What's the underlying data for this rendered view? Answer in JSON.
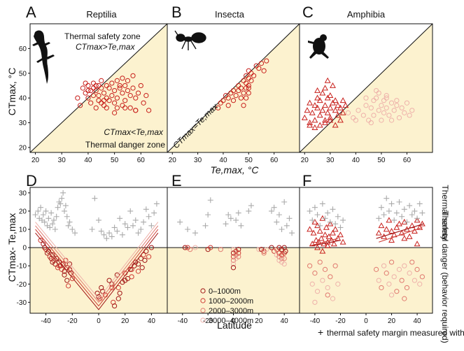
{
  "colors": {
    "danger": "#fcf2cf",
    "reptile": "#c8201c",
    "alt_colors": [
      "#a11515",
      "#cf3b33",
      "#e07a70",
      "#eeb1aa"
    ],
    "taMarker": "#aaaaaa"
  },
  "icons": [
    "lizard-icon",
    "ant-icon",
    "frog-icon"
  ],
  "chart_data": [
    {
      "panel": "A",
      "type": "scatter",
      "title": "Reptilia",
      "marker": "circle",
      "xlim": [
        18,
        70
      ],
      "ylim": [
        18,
        70
      ],
      "xticks": [
        "20",
        "30",
        "40",
        "50",
        "60"
      ],
      "yticks": [
        "20",
        "30",
        "40",
        "50",
        "60"
      ],
      "ylabel": "CTmax, °C",
      "annotations": [
        "Thermal safety zone",
        "CTmax>Te,max",
        "CTmax<Te,max",
        "Thermal danger zone"
      ],
      "series": [
        {
          "x": [
            37,
            38,
            39,
            39,
            40,
            40,
            41,
            41,
            42,
            42,
            42,
            43,
            43,
            44,
            44,
            44,
            45,
            45,
            45,
            46,
            46,
            47,
            47,
            47,
            48,
            48,
            49,
            49,
            50,
            50,
            51,
            51,
            51,
            52,
            52,
            53,
            53,
            53,
            54,
            54,
            55,
            55,
            56,
            56,
            57,
            57,
            58,
            58,
            59,
            60,
            61,
            62,
            63,
            36,
            40,
            43,
            46,
            50,
            54,
            58
          ],
          "y": [
            37,
            44,
            42,
            46,
            45,
            40,
            43,
            38,
            44,
            41,
            46,
            43,
            36,
            45,
            39,
            41,
            44,
            38,
            47,
            42,
            37,
            45,
            40,
            36,
            44,
            39,
            46,
            41,
            38,
            43,
            47,
            40,
            36,
            44,
            45,
            42,
            37,
            48,
            45,
            39,
            43,
            47,
            41,
            36,
            44,
            49,
            40,
            35,
            42,
            45,
            38,
            41,
            35,
            40,
            43,
            45,
            39,
            34,
            36,
            35
          ]
        }
      ]
    },
    {
      "panel": "B",
      "type": "scatter",
      "title": "Insecta",
      "marker": "circle",
      "xlim": [
        18,
        70
      ],
      "ylim": [
        18,
        70
      ],
      "xticks": [
        "20",
        "30",
        "40",
        "50",
        "60"
      ],
      "xlabel": "Te,max, °C",
      "annotations": [
        "CTmax=Te,max"
      ],
      "series": [
        {
          "x": [
            38,
            39,
            40,
            41,
            42,
            42,
            43,
            44,
            44,
            45,
            46,
            46,
            47,
            47,
            48,
            48,
            49,
            49,
            49,
            50,
            50,
            50,
            50,
            51,
            51,
            52,
            53,
            54,
            55,
            56,
            57,
            50,
            49,
            48
          ],
          "y": [
            36,
            38,
            39,
            41,
            37,
            40,
            42,
            39,
            43,
            41,
            43,
            45,
            40,
            44,
            42,
            47,
            44,
            46,
            49,
            42,
            45,
            48,
            51,
            47,
            50,
            49,
            53,
            52,
            54,
            51,
            55,
            44,
            40,
            37
          ]
        }
      ]
    },
    {
      "panel": "C",
      "type": "scatter",
      "title": "Amphibia",
      "xlim": [
        18,
        70
      ],
      "ylim": [
        18,
        70
      ],
      "xticks": [
        "20",
        "30",
        "40",
        "50",
        "60"
      ],
      "series": [
        {
          "marker": "triangle",
          "x": [
            20,
            21,
            22,
            22,
            23,
            24,
            24,
            25,
            25,
            26,
            26,
            27,
            27,
            28,
            28,
            28,
            29,
            29,
            30,
            30,
            30,
            31,
            31,
            32,
            32,
            33,
            33,
            34,
            35,
            35,
            36,
            22,
            24,
            26,
            28,
            30,
            32,
            34,
            25,
            29
          ],
          "y": [
            32,
            35,
            30,
            38,
            34,
            37,
            31,
            36,
            40,
            33,
            39,
            35,
            42,
            31,
            37,
            44,
            34,
            40,
            36,
            32,
            41,
            38,
            45,
            35,
            39,
            33,
            37,
            36,
            39,
            34,
            37,
            29,
            28,
            29,
            30,
            31,
            29,
            31,
            43,
            47
          ]
        },
        {
          "marker": "circle",
          "x": [
            37,
            39,
            41,
            43,
            44,
            45,
            46,
            47,
            47,
            48,
            49,
            49,
            50,
            50,
            51,
            51,
            52,
            52,
            53,
            54,
            55,
            56,
            57,
            58,
            59,
            60,
            61,
            62,
            44,
            48,
            52,
            56,
            40,
            46,
            54
          ],
          "y": [
            34,
            32,
            35,
            33,
            37,
            31,
            36,
            39,
            33,
            40,
            35,
            42,
            37,
            31,
            39,
            34,
            41,
            36,
            33,
            38,
            35,
            37,
            32,
            36,
            34,
            38,
            33,
            35,
            40,
            43,
            40,
            39,
            31,
            30,
            31
          ]
        }
      ]
    },
    {
      "panel": "D",
      "type": "scatter",
      "xlim": [
        -52,
        52
      ],
      "ylim": [
        -36,
        33
      ],
      "xticks": [
        "-40",
        "-20",
        "0",
        "20",
        "40"
      ],
      "yticks": [
        "-30",
        "-20",
        "-10",
        "0",
        "10",
        "20",
        "30"
      ],
      "ylabel": "CTmax- Te,max",
      "series": [
        {
          "marker": "circle",
          "x": [
            -44,
            -42,
            -41,
            -40,
            -39,
            -38,
            -37,
            -36,
            -35,
            -34,
            -33,
            -32,
            -31,
            -30,
            -29,
            -28,
            -27,
            -26,
            -25,
            -24,
            -24,
            -23,
            -22,
            -21,
            -20,
            -1,
            0,
            1,
            2,
            3,
            5,
            8,
            10,
            11,
            12,
            14,
            15,
            16,
            18,
            20,
            22,
            24,
            25,
            27,
            28,
            30,
            32,
            33,
            34,
            35,
            36,
            38,
            40,
            -35,
            -30,
            -26,
            -22,
            10,
            15,
            20,
            25,
            30
          ],
          "y": [
            4,
            2,
            0,
            -1,
            -3,
            -2,
            -5,
            -6,
            -8,
            -7,
            -9,
            -6,
            -11,
            -8,
            -10,
            -12,
            -9,
            -13,
            -7,
            -11,
            -18,
            -21,
            -9,
            -14,
            -17,
            -25,
            -27,
            -28,
            -22,
            -24,
            -26,
            -18,
            -20,
            -30,
            -32,
            -15,
            -22,
            -25,
            -19,
            -14,
            -17,
            -12,
            -16,
            -10,
            -8,
            -13,
            -6,
            -11,
            -4,
            -7,
            -2,
            -5,
            0,
            -4,
            -10,
            -15,
            -12,
            -22,
            -28,
            -18,
            -12,
            -9
          ]
        },
        {
          "marker": "plus",
          "x": [
            -48,
            -46,
            -45,
            -44,
            -43,
            -42,
            -41,
            -40,
            -39,
            -38,
            -37,
            -36,
            -35,
            -34,
            -33,
            -32,
            -31,
            -30,
            -29,
            -28,
            -27,
            -26,
            -25,
            -24,
            -23,
            -22,
            -20,
            -18,
            -5,
            -3,
            0,
            2,
            4,
            6,
            8,
            10,
            12,
            14,
            16,
            18,
            20,
            22,
            24,
            26,
            28,
            30,
            32,
            34,
            36,
            38,
            40,
            42,
            44
          ],
          "y": [
            18,
            20,
            16,
            22,
            15,
            18,
            14,
            20,
            12,
            16,
            11,
            19,
            13,
            15,
            10,
            17,
            22,
            25,
            24,
            27,
            30,
            20,
            23,
            17,
            12,
            14,
            10,
            8,
            10,
            27,
            15,
            9,
            7,
            5,
            8,
            6,
            11,
            9,
            16,
            7,
            13,
            11,
            20,
            12,
            15,
            8,
            10,
            14,
            21,
            17,
            12,
            19,
            24
          ]
        }
      ]
    },
    {
      "panel": "E",
      "type": "scatter",
      "xlim": [
        -52,
        52
      ],
      "ylim": [
        -36,
        33
      ],
      "xticks": [
        "-40",
        "-20",
        "0",
        "20",
        "40"
      ],
      "xlabel": "Latitude",
      "legend": {
        "position": "bottom-center",
        "entries": [
          "0–1000m",
          "1000–2000m",
          "2000–3000m",
          "3000–4000m"
        ]
      },
      "series": [
        {
          "marker": "circle",
          "x": [
            -38,
            -36,
            -34,
            -30,
            -20,
            -18,
            -10,
            0,
            0,
            0,
            0,
            0,
            0,
            2,
            2,
            2,
            4,
            4,
            4,
            20,
            22,
            24,
            24,
            26,
            30,
            32,
            34,
            34,
            36,
            36,
            36,
            36,
            38,
            38,
            38,
            38,
            40,
            40,
            40,
            40,
            41
          ],
          "y": [
            0,
            0,
            -1,
            0,
            -1,
            0,
            -1,
            -1,
            -3,
            -5,
            -7,
            -9,
            -11,
            -2,
            -4,
            -6,
            -1,
            -3,
            -5,
            -1,
            -1,
            -2,
            -3,
            -1,
            0,
            -2,
            -1,
            -4,
            0,
            -3,
            -5,
            -7,
            -1,
            -4,
            -6,
            -8,
            0,
            -3,
            -6,
            -9,
            -2
          ]
        },
        {
          "marker": "plus",
          "x": [
            -42,
            -36,
            -30,
            -22,
            -20,
            -18,
            -6,
            -4,
            -2,
            2,
            4,
            6,
            30,
            32,
            34,
            36,
            38,
            40,
            42,
            44,
            46,
            12,
            14
          ],
          "y": [
            14,
            10,
            8,
            12,
            18,
            26,
            13,
            18,
            16,
            15,
            19,
            12,
            20,
            22,
            14,
            18,
            10,
            25,
            12,
            16,
            8,
            20,
            23
          ]
        }
      ]
    },
    {
      "panel": "F",
      "type": "scatter",
      "xlim": [
        -52,
        52
      ],
      "ylim": [
        -36,
        33
      ],
      "xticks": [
        "-40",
        "-20",
        "0",
        "20",
        "40"
      ],
      "right_labels": [
        "Thermal safety",
        "Thermal danger (behavior required)"
      ],
      "legend_note": "thermal safety margin measured with Ta",
      "series": [
        {
          "marker": "triangle",
          "x": [
            -44,
            -42,
            -41,
            -40,
            -39,
            -38,
            -37,
            -36,
            -35,
            -34,
            -33,
            -32,
            -31,
            -30,
            -29,
            -28,
            -27,
            -26,
            -25,
            -24,
            -22,
            -20,
            -18,
            10,
            12,
            14,
            16,
            18,
            20,
            22,
            24,
            26,
            28,
            30,
            32,
            34,
            36,
            38,
            40,
            42,
            44,
            -38,
            -34,
            -30,
            20,
            30,
            40
          ],
          "y": [
            10,
            2,
            8,
            14,
            4,
            12,
            3,
            9,
            5,
            16,
            2,
            7,
            11,
            3,
            6,
            13,
            4,
            8,
            2,
            10,
            5,
            7,
            3,
            8,
            12,
            6,
            10,
            15,
            9,
            7,
            11,
            13,
            8,
            14,
            10,
            6,
            12,
            9,
            15,
            11,
            13,
            0,
            -2,
            1,
            4,
            5,
            2
          ]
        },
        {
          "marker": "circle",
          "x": [
            -44,
            -42,
            -40,
            -38,
            -36,
            -34,
            -32,
            -30,
            -28,
            -26,
            -24,
            -22,
            8,
            10,
            12,
            14,
            16,
            18,
            20,
            22,
            24,
            26,
            28,
            30,
            32,
            34,
            36,
            38,
            40,
            42,
            44,
            -40,
            -30,
            20,
            30
          ],
          "y": [
            -10,
            -20,
            -14,
            -24,
            -8,
            -18,
            -12,
            -22,
            -16,
            -28,
            -10,
            -20,
            -12,
            -18,
            -22,
            -10,
            -14,
            -20,
            -8,
            -16,
            -24,
            -12,
            -18,
            -10,
            -22,
            -14,
            -8,
            -18,
            -12,
            -20,
            -16,
            -30,
            -26,
            -26,
            -28
          ]
        },
        {
          "marker": "plus",
          "x": [
            -44,
            -42,
            -40,
            -38,
            -36,
            -34,
            -32,
            -30,
            -28,
            -26,
            -24,
            -22,
            -20,
            -18,
            10,
            12,
            14,
            16,
            18,
            20,
            22,
            24,
            26,
            28,
            30,
            32,
            34,
            36,
            38,
            40,
            42,
            44
          ],
          "y": [
            20,
            15,
            22,
            18,
            12,
            24,
            16,
            19,
            14,
            21,
            13,
            17,
            11,
            15,
            16,
            22,
            18,
            27,
            20,
            24,
            15,
            19,
            25,
            17,
            21,
            14,
            23,
            18,
            20,
            16,
            24,
            19
          ]
        }
      ]
    }
  ]
}
